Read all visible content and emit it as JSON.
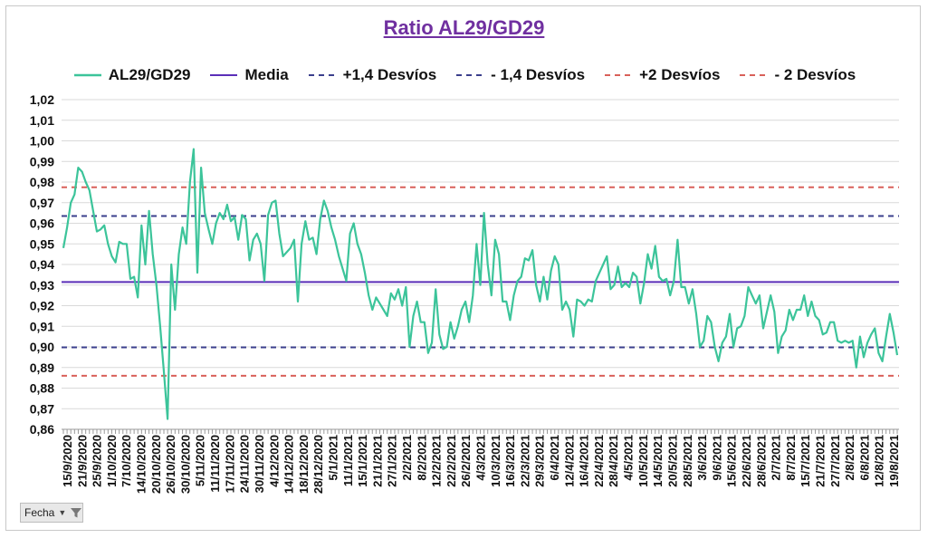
{
  "chart_data": {
    "type": "line",
    "title": "Ratio AL29/GD29",
    "xlabel": "",
    "ylabel": "",
    "ylim": [
      0.86,
      1.02
    ],
    "y_ticks": [
      "0,86",
      "0,87",
      "0,88",
      "0,89",
      "0,90",
      "0,91",
      "0,92",
      "0,93",
      "0,94",
      "0,95",
      "0,96",
      "0,97",
      "0,98",
      "0,99",
      "1,00",
      "1,01",
      "1,02"
    ],
    "x_ticks": [
      "15/9/2020",
      "21/9/2020",
      "25/9/2020",
      "1/10/2020",
      "7/10/2020",
      "14/10/2020",
      "20/10/2020",
      "26/10/2020",
      "30/10/2020",
      "5/11/2020",
      "11/11/2020",
      "17/11/2020",
      "24/11/2020",
      "30/11/2020",
      "4/12/2020",
      "14/12/2020",
      "18/12/2020",
      "28/12/2020",
      "5/1/2021",
      "11/1/2021",
      "15/1/2021",
      "21/1/2021",
      "27/1/2021",
      "2/2/2021",
      "8/2/2021",
      "12/2/2021",
      "22/2/2021",
      "26/2/2021",
      "4/3/2021",
      "10/3/2021",
      "16/3/2021",
      "22/3/2021",
      "29/3/2021",
      "6/4/2021",
      "12/4/2021",
      "16/4/2021",
      "22/4/2021",
      "28/4/2021",
      "4/5/2021",
      "10/5/2021",
      "14/5/2021",
      "20/5/2021",
      "28/5/2021",
      "3/6/2021",
      "9/6/2021",
      "15/6/2021",
      "22/6/2021",
      "28/6/2021",
      "2/7/2021",
      "8/7/2021",
      "15/7/2021",
      "21/7/2021",
      "27/7/2021",
      "2/8/2021",
      "6/8/2021",
      "12/8/2021",
      "19/8/2021"
    ],
    "grid": true,
    "legend_position": "top",
    "reference_lines": [
      {
        "name": "Media",
        "value": 0.9315,
        "color": "#5b2fb8",
        "style": "solid"
      },
      {
        "name": "+1,4 Desvíos",
        "value": 0.9635,
        "color": "#3b3f8c",
        "style": "dashed"
      },
      {
        "name": "- 1,4 Desvíos",
        "value": 0.8998,
        "color": "#3b3f8c",
        "style": "dashed"
      },
      {
        "name": "+2 Desvíos",
        "value": 0.9775,
        "color": "#d9605a",
        "style": "dashed"
      },
      {
        "name": "- 2 Desvíos",
        "value": 0.886,
        "color": "#d9605a",
        "style": "dashed"
      }
    ],
    "series": [
      {
        "name": "AL29/GD29",
        "color": "#3cc49a",
        "values": [
          0.948,
          0.958,
          0.97,
          0.974,
          0.987,
          0.985,
          0.98,
          0.976,
          0.966,
          0.956,
          0.957,
          0.959,
          0.95,
          0.944,
          0.941,
          0.951,
          0.95,
          0.95,
          0.933,
          0.934,
          0.924,
          0.959,
          0.94,
          0.966,
          0.945,
          0.93,
          0.91,
          0.888,
          0.865,
          0.94,
          0.918,
          0.945,
          0.958,
          0.95,
          0.98,
          0.996,
          0.936,
          0.987,
          0.965,
          0.957,
          0.95,
          0.96,
          0.965,
          0.962,
          0.969,
          0.961,
          0.963,
          0.952,
          0.964,
          0.962,
          0.942,
          0.952,
          0.955,
          0.95,
          0.932,
          0.964,
          0.97,
          0.971,
          0.955,
          0.944,
          0.946,
          0.948,
          0.952,
          0.922,
          0.95,
          0.961,
          0.952,
          0.953,
          0.945,
          0.962,
          0.971,
          0.966,
          0.958,
          0.952,
          0.944,
          0.938,
          0.932,
          0.955,
          0.96,
          0.95,
          0.945,
          0.936,
          0.925,
          0.918,
          0.924,
          0.921,
          0.918,
          0.915,
          0.926,
          0.923,
          0.928,
          0.92,
          0.929,
          0.9,
          0.915,
          0.922,
          0.912,
          0.912,
          0.897,
          0.902,
          0.928,
          0.906,
          0.899,
          0.9,
          0.912,
          0.904,
          0.91,
          0.918,
          0.922,
          0.912,
          0.925,
          0.95,
          0.93,
          0.965,
          0.94,
          0.925,
          0.952,
          0.945,
          0.922,
          0.922,
          0.913,
          0.925,
          0.932,
          0.934,
          0.943,
          0.942,
          0.947,
          0.93,
          0.922,
          0.934,
          0.923,
          0.937,
          0.944,
          0.94,
          0.918,
          0.922,
          0.918,
          0.905,
          0.923,
          0.922,
          0.92,
          0.923,
          0.922,
          0.932,
          0.936,
          0.94,
          0.944,
          0.928,
          0.93,
          0.939,
          0.929,
          0.931,
          0.929,
          0.936,
          0.934,
          0.921,
          0.931,
          0.945,
          0.938,
          0.949,
          0.934,
          0.932,
          0.933,
          0.925,
          0.932,
          0.952,
          0.929,
          0.929,
          0.921,
          0.928,
          0.916,
          0.9,
          0.903,
          0.915,
          0.912,
          0.9,
          0.893,
          0.902,
          0.905,
          0.916,
          0.9,
          0.909,
          0.91,
          0.915,
          0.929,
          0.925,
          0.921,
          0.925,
          0.909,
          0.917,
          0.925,
          0.917,
          0.897,
          0.905,
          0.908,
          0.918,
          0.913,
          0.918,
          0.918,
          0.925,
          0.915,
          0.922,
          0.915,
          0.913,
          0.906,
          0.907,
          0.912,
          0.912,
          0.903,
          0.902,
          0.903,
          0.902,
          0.903,
          0.89,
          0.905,
          0.895,
          0.902,
          0.906,
          0.909,
          0.897,
          0.893,
          0.905,
          0.916,
          0.907,
          0.896
        ]
      }
    ]
  },
  "filter_button": {
    "label": "Fecha",
    "icon": "funnel-icon"
  }
}
